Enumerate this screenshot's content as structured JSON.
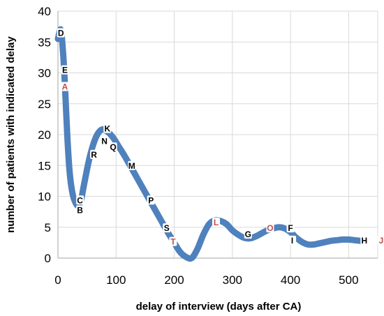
{
  "chart_data": {
    "type": "line",
    "title": "",
    "xlabel": "delay of interview (days after CA)",
    "ylabel": "number of patients with indicated delay",
    "xlim": [
      0,
      550
    ],
    "ylim": [
      0,
      40
    ],
    "x_ticks": [
      0,
      100,
      200,
      300,
      400,
      500
    ],
    "y_ticks": [
      0,
      5,
      10,
      15,
      20,
      25,
      30,
      35,
      40
    ],
    "grid": "horizontal and vertical",
    "legend": "none",
    "series": [
      {
        "color": "#4f81bd",
        "points": [
          [
            0,
            35.5
          ],
          [
            5,
            37
          ],
          [
            9,
            33
          ],
          [
            12,
            28
          ],
          [
            16,
            20
          ],
          [
            20,
            14
          ],
          [
            25,
            10.5
          ],
          [
            30,
            9
          ],
          [
            35,
            8.5
          ],
          [
            40,
            9.5
          ],
          [
            45,
            12
          ],
          [
            55,
            16.5
          ],
          [
            65,
            19.5
          ],
          [
            75,
            20.8
          ],
          [
            85,
            20.5
          ],
          [
            95,
            19.5
          ],
          [
            105,
            18
          ],
          [
            115,
            16.5
          ],
          [
            130,
            14
          ],
          [
            145,
            11.5
          ],
          [
            160,
            9
          ],
          [
            175,
            6.5
          ],
          [
            190,
            4
          ],
          [
            200,
            2.5
          ],
          [
            210,
            1
          ],
          [
            220,
            0.2
          ],
          [
            230,
            0
          ],
          [
            240,
            1.5
          ],
          [
            250,
            3.8
          ],
          [
            260,
            5.5
          ],
          [
            270,
            6.1
          ],
          [
            280,
            6
          ],
          [
            290,
            5.5
          ],
          [
            300,
            4.5
          ],
          [
            310,
            3.8
          ],
          [
            320,
            3.3
          ],
          [
            330,
            3.2
          ],
          [
            340,
            3.5
          ],
          [
            350,
            4
          ],
          [
            360,
            4.5
          ],
          [
            370,
            4.8
          ],
          [
            380,
            5
          ],
          [
            390,
            4.8
          ],
          [
            400,
            4.2
          ],
          [
            410,
            3.3
          ],
          [
            420,
            2.6
          ],
          [
            430,
            2.2
          ],
          [
            440,
            2.2
          ],
          [
            450,
            2.4
          ],
          [
            460,
            2.6
          ],
          [
            470,
            2.8
          ],
          [
            480,
            2.9
          ],
          [
            490,
            3
          ],
          [
            500,
            3
          ],
          [
            510,
            2.9
          ],
          [
            520,
            2.8
          ]
        ]
      }
    ],
    "point_labels": [
      {
        "text": "D",
        "x": 5,
        "y": 36.5,
        "color": "#000000"
      },
      {
        "text": "E",
        "x": 12,
        "y": 30.5,
        "color": "#000000"
      },
      {
        "text": "A",
        "x": 12,
        "y": 27.8,
        "color": "#c0504d"
      },
      {
        "text": "C",
        "x": 38,
        "y": 9.4,
        "color": "#000000"
      },
      {
        "text": "B",
        "x": 38,
        "y": 7.8,
        "color": "#000000"
      },
      {
        "text": "K",
        "x": 85,
        "y": 21.0,
        "color": "#000000"
      },
      {
        "text": "N",
        "x": 80,
        "y": 19.0,
        "color": "#000000"
      },
      {
        "text": "Q",
        "x": 95,
        "y": 18.0,
        "color": "#000000"
      },
      {
        "text": "R",
        "x": 62,
        "y": 16.8,
        "color": "#000000"
      },
      {
        "text": "M",
        "x": 127,
        "y": 15.0,
        "color": "#000000"
      },
      {
        "text": "P",
        "x": 160,
        "y": 9.4,
        "color": "#000000"
      },
      {
        "text": "S",
        "x": 187,
        "y": 4.9,
        "color": "#000000"
      },
      {
        "text": "T",
        "x": 198,
        "y": 2.7,
        "color": "#c0504d"
      },
      {
        "text": "L",
        "x": 272,
        "y": 5.8,
        "color": "#c0504d"
      },
      {
        "text": "G",
        "x": 327,
        "y": 3.9,
        "color": "#000000"
      },
      {
        "text": "O",
        "x": 365,
        "y": 4.9,
        "color": "#c0504d"
      },
      {
        "text": "F",
        "x": 400,
        "y": 4.9,
        "color": "#000000"
      },
      {
        "text": "I",
        "x": 403,
        "y": 2.9,
        "color": "#000000"
      },
      {
        "text": "H",
        "x": 527,
        "y": 2.9,
        "color": "#000000"
      },
      {
        "text": "J",
        "x": 557,
        "y": 2.9,
        "color": "#c0504d"
      }
    ]
  }
}
